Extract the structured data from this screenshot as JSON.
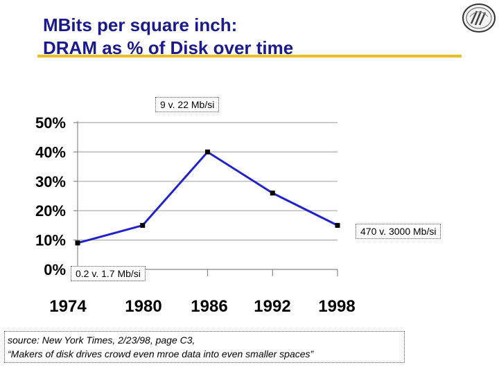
{
  "title": {
    "line1": "MBits per square inch:",
    "line2": "DRAM as % of Disk over time"
  },
  "logo": {
    "icon": "university-seal-icon"
  },
  "callouts": {
    "top": "9  v. 22 Mb/si",
    "right": "470 v. 3000 Mb/si",
    "bottom": "0.2  v. 1.7 Mb/si"
  },
  "source": {
    "line1": "source: New York Times, 2/23/98, page C3,",
    "line2": "“Makers of disk drives crowd even mroe data into even smaller spaces”"
  },
  "chart_data": {
    "type": "line",
    "x": [
      1974,
      1980,
      1986,
      1992,
      1998
    ],
    "xticks": [
      "1974",
      "1980",
      "1986",
      "1992",
      "1998"
    ],
    "yticks": [
      "0%",
      "10%",
      "20%",
      "30%",
      "40%",
      "50%"
    ],
    "ylim": [
      0,
      50
    ],
    "series": [
      {
        "values": [
          9,
          15,
          40,
          26,
          15
        ],
        "color": "#2222cc"
      }
    ],
    "grid": true,
    "marker_color": "#000000",
    "title": "",
    "xlabel": "",
    "ylabel": ""
  }
}
